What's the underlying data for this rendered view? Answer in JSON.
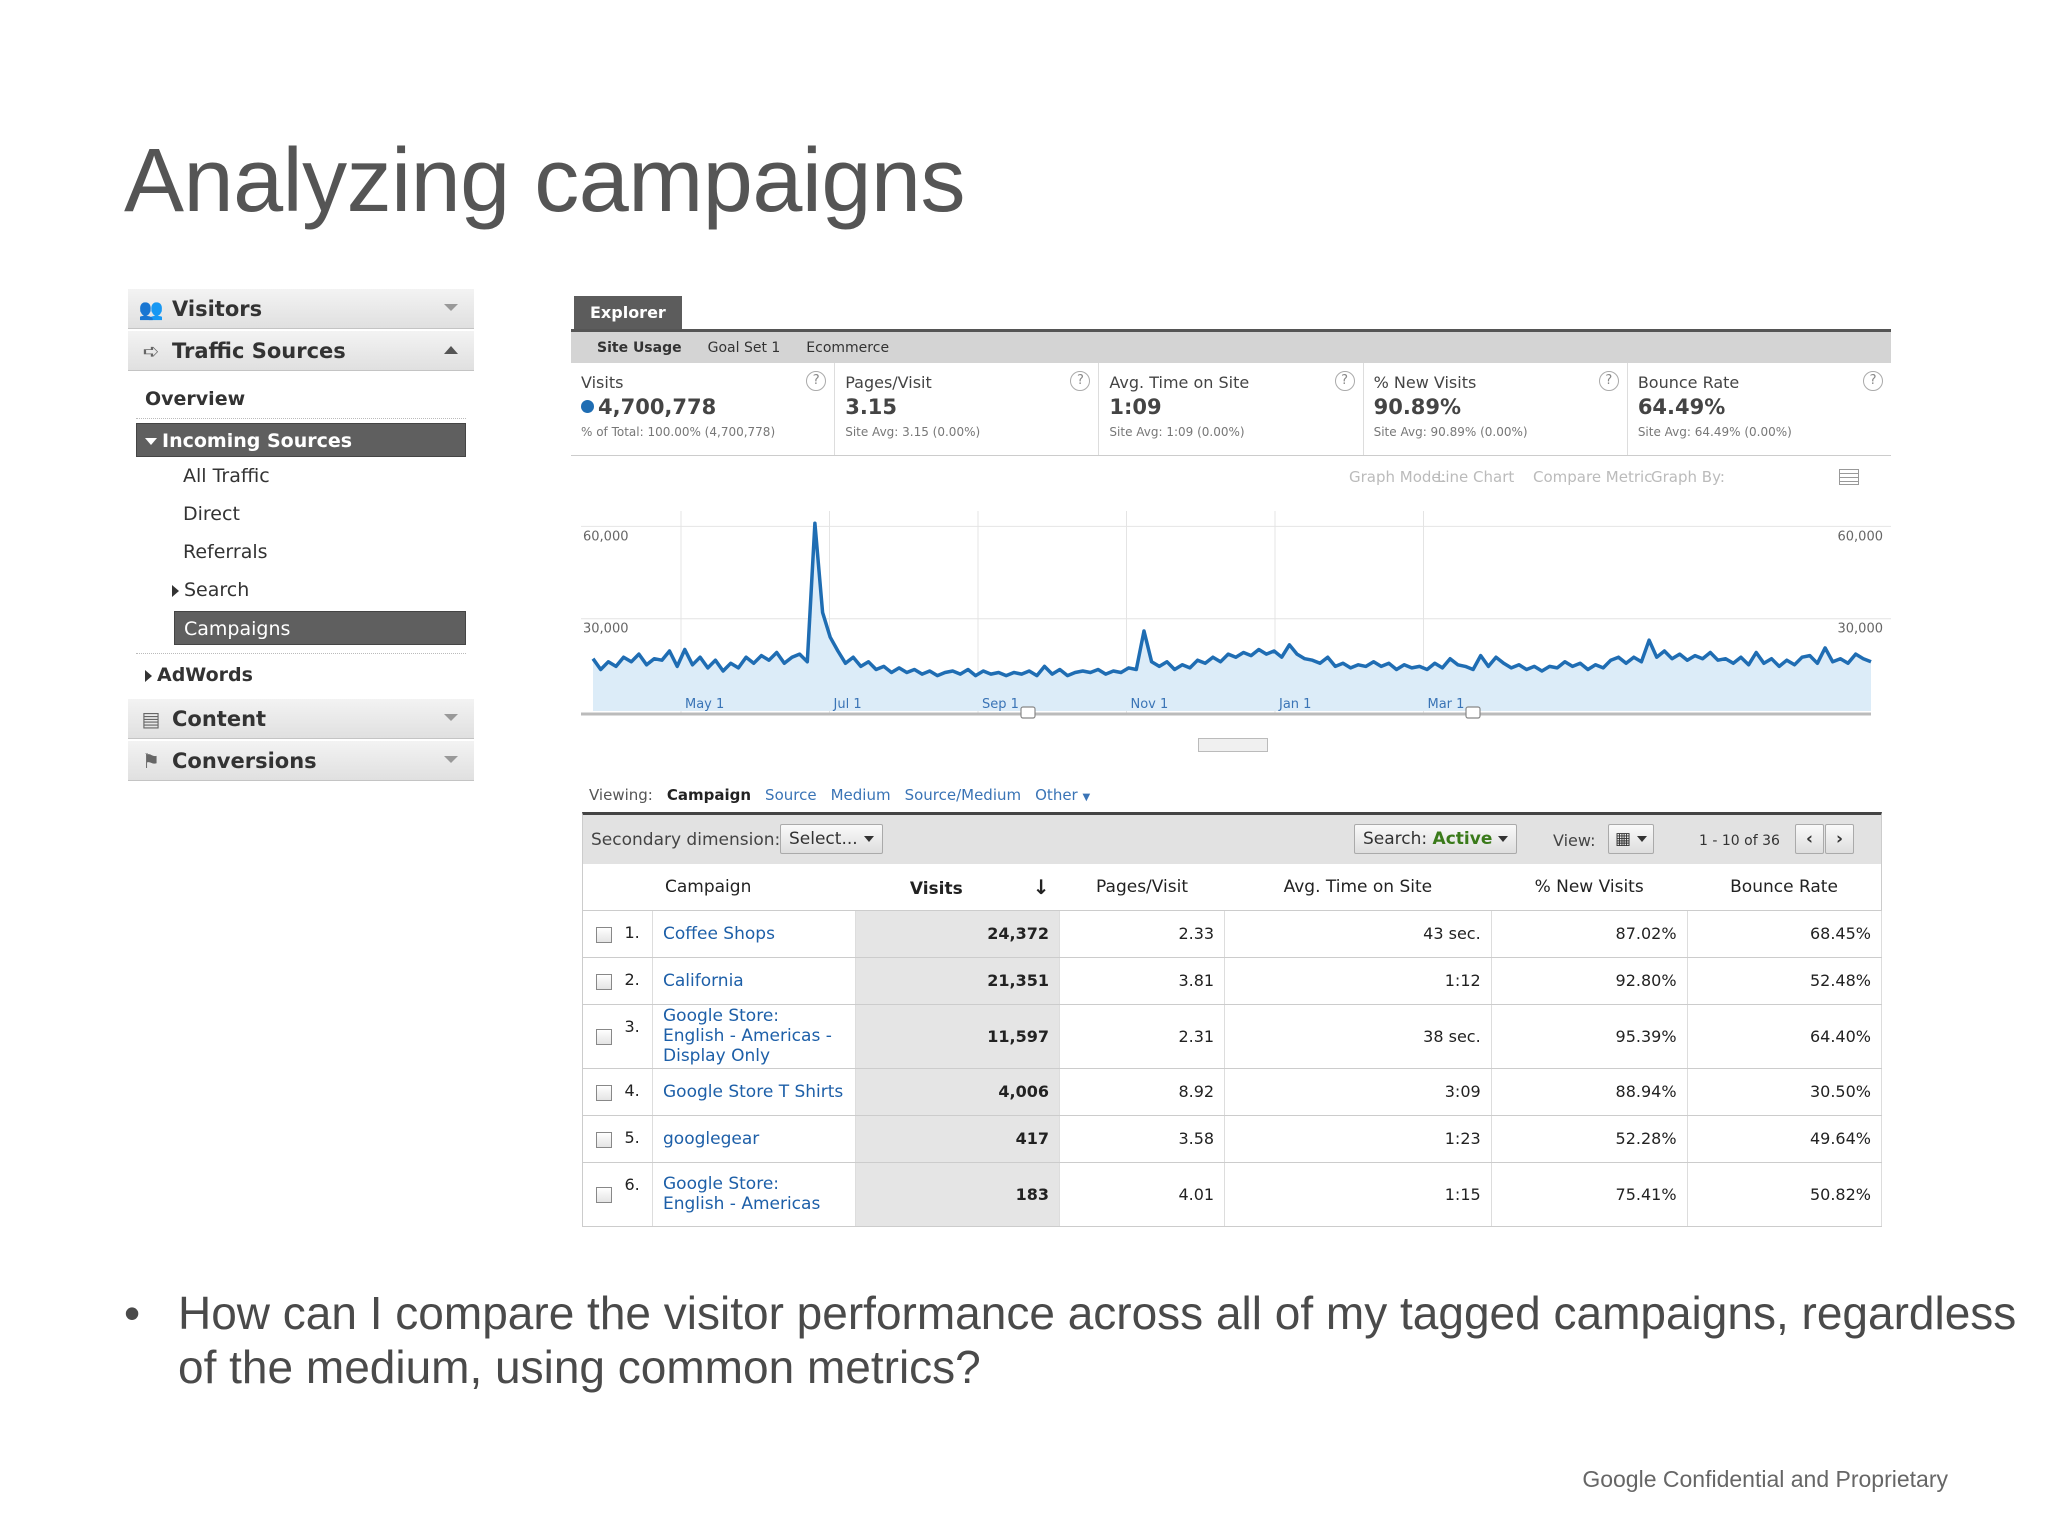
{
  "slide": {
    "title": "Analyzing campaigns",
    "bullet": "How can I compare the visitor performance across all of my tagged campaigns, regardless of the medium, using common metrics?",
    "footer": "Google Confidential and Proprietary"
  },
  "sidebar": {
    "visitors": "Visitors",
    "traffic_sources": "Traffic Sources",
    "overview": "Overview",
    "incoming_sources": "Incoming Sources",
    "items": [
      "All Traffic",
      "Direct",
      "Referrals"
    ],
    "search": "Search",
    "campaigns": "Campaigns",
    "adwords": "AdWords",
    "content": "Content",
    "conversions": "Conversions"
  },
  "explorer": {
    "tab": "Explorer",
    "subtabs": [
      "Site Usage",
      "Goal Set 1",
      "Ecommerce"
    ],
    "metrics": [
      {
        "name": "Visits",
        "value": "4,700,778",
        "sub": "% of Total: 100.00% (4,700,778)"
      },
      {
        "name": "Pages/Visit",
        "value": "3.15",
        "sub": "Site Avg: 3.15 (0.00%)"
      },
      {
        "name": "Avg. Time on Site",
        "value": "1:09",
        "sub": "Site Avg: 1:09 (0.00%)"
      },
      {
        "name": "% New Visits",
        "value": "90.89%",
        "sub": "Site Avg: 90.89% (0.00%)"
      },
      {
        "name": "Bounce Rate",
        "value": "64.49%",
        "sub": "Site Avg: 64.49% (0.00%)"
      }
    ],
    "help": "?",
    "graph_mode_label": "Graph Mode:",
    "graph_mode_value": "Line Chart",
    "compare_metric": "Compare Metric",
    "graph_by": "Graph By:"
  },
  "chart_data": {
    "type": "area",
    "x_ticks": [
      "May 1",
      "Jul 1",
      "Sep 1",
      "Nov 1",
      "Jan 1",
      "Mar 1"
    ],
    "y_ticks_left": [
      "60,000",
      "30,000"
    ],
    "y_ticks_right": [
      "60,000",
      "30,000"
    ],
    "ylim": [
      0,
      65000
    ],
    "series": [
      {
        "values": [
          17000,
          13500,
          16000,
          14500,
          17500,
          16000,
          18500,
          15000,
          17000,
          16500,
          19500,
          14500,
          20000,
          15000,
          17500,
          14000,
          16500,
          13000,
          15500,
          14000,
          17500,
          15500,
          18000,
          16500,
          19000,
          15500,
          17500,
          18500,
          16000,
          61000,
          32000,
          24000,
          19500,
          15500,
          17500,
          14500,
          16000,
          13500,
          14500,
          12500,
          14000,
          12500,
          13500,
          12000,
          13000,
          11500,
          12500,
          13000,
          12000,
          13500,
          11500,
          13000,
          12000,
          12500,
          11500,
          12500,
          12000,
          13000,
          11500,
          14500,
          12000,
          13500,
          11500,
          12500,
          13000,
          12500,
          13500,
          12000,
          13000,
          12500,
          14000,
          13500,
          26000,
          16000,
          14500,
          16000,
          13500,
          15000,
          14000,
          16500,
          15500,
          17500,
          16000,
          18500,
          17500,
          19000,
          18000,
          20000,
          18500,
          19500,
          17500,
          21500,
          18500,
          17000,
          16500,
          15500,
          17500,
          14500,
          15500,
          14000,
          15000,
          14500,
          16000,
          14500,
          15500,
          13500,
          15000,
          14000,
          14500,
          13500,
          15500,
          14000,
          17000,
          15000,
          14500,
          13500,
          18000,
          14500,
          17500,
          15500,
          14000,
          15000,
          13500,
          14500,
          13000,
          14500,
          14000,
          16000,
          14500,
          15500,
          13500,
          15000,
          14000,
          16500,
          17500,
          15500,
          17500,
          16000,
          23000,
          17500,
          19500,
          17000,
          18500,
          16500,
          18000,
          17000,
          19000,
          16500,
          17000,
          15500,
          17500,
          15000,
          19000,
          15500,
          17000,
          14500,
          16500,
          15000,
          17500,
          18000,
          15500,
          20500,
          16000,
          17000,
          15500,
          18500,
          17000,
          16000
        ]
      }
    ]
  },
  "table": {
    "viewing_label": "Viewing:",
    "viewing_current": "Campaign",
    "viewing_links": [
      "Source",
      "Medium",
      "Source/Medium"
    ],
    "viewing_other": "Other",
    "secondary_label": "Secondary dimension:",
    "select_label": "Select...",
    "search_label": "Search:",
    "search_value": "Active",
    "view_label": "View:",
    "pager": "1 - 10 of 36",
    "prev": "‹",
    "next": "›",
    "headers": {
      "campaign": "Campaign",
      "visits": "Visits",
      "pages": "Pages/Visit",
      "time": "Avg. Time on Site",
      "new": "% New Visits",
      "bounce": "Bounce Rate"
    },
    "rows": [
      {
        "n": "1.",
        "campaign": "Coffee Shops",
        "visits": "24,372",
        "pages": "2.33",
        "time": "43 sec.",
        "new": "87.02%",
        "bounce": "68.45%"
      },
      {
        "n": "2.",
        "campaign": "California",
        "visits": "21,351",
        "pages": "3.81",
        "time": "1:12",
        "new": "92.80%",
        "bounce": "52.48%"
      },
      {
        "n": "3.",
        "campaign": "Google Store: English - Americas - Display Only",
        "visits": "11,597",
        "pages": "2.31",
        "time": "38 sec.",
        "new": "95.39%",
        "bounce": "64.40%"
      },
      {
        "n": "4.",
        "campaign": "Google Store T Shirts",
        "visits": "4,006",
        "pages": "8.92",
        "time": "3:09",
        "new": "88.94%",
        "bounce": "30.50%"
      },
      {
        "n": "5.",
        "campaign": "googlegear",
        "visits": "417",
        "pages": "3.58",
        "time": "1:23",
        "new": "52.28%",
        "bounce": "49.64%"
      },
      {
        "n": "6.",
        "campaign": "Google Store: English - Americas",
        "visits": "183",
        "pages": "4.01",
        "time": "1:15",
        "new": "75.41%",
        "bounce": "50.82%"
      }
    ]
  }
}
